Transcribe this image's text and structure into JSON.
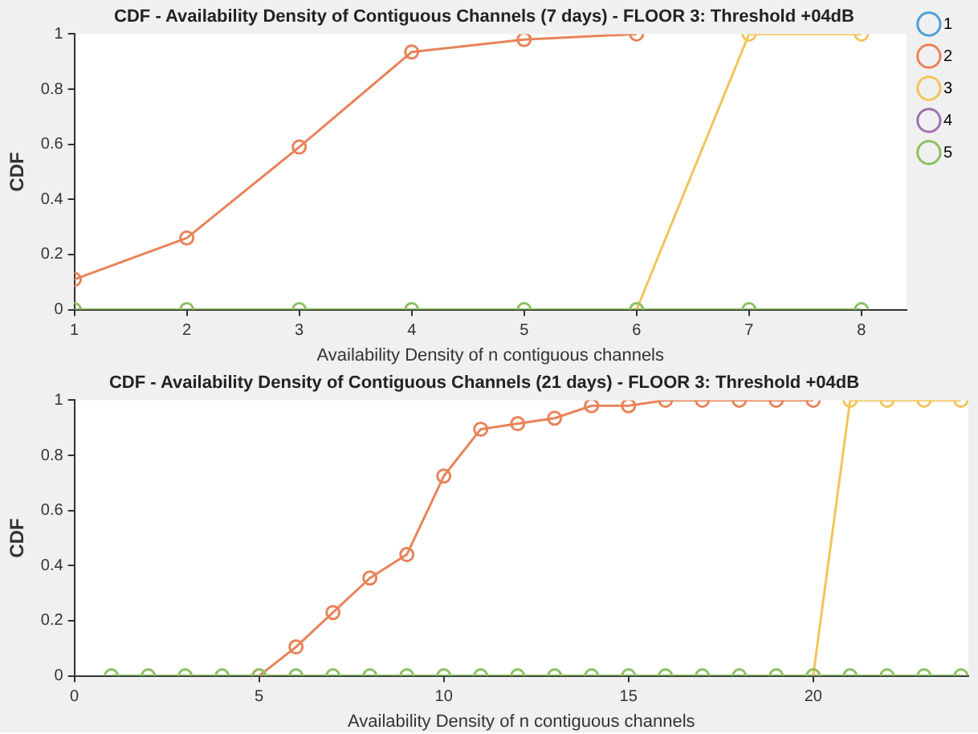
{
  "chart_data": [
    {
      "type": "line",
      "title": "CDF - Availability Density of Contiguous Channels (7 days) - FLOOR 3: Threshold +04dB",
      "xlabel": "Availability Density of n contiguous channels",
      "ylabel": "CDF",
      "x": [
        1,
        2,
        3,
        4,
        5,
        6,
        7,
        8
      ],
      "series": [
        {
          "name": "1",
          "color": "#4a9fd8",
          "values": [
            null,
            null,
            null,
            null,
            null,
            null,
            null,
            null
          ]
        },
        {
          "name": "2",
          "color": "#e8835a",
          "values": [
            0.11,
            0.26,
            0.59,
            0.935,
            0.98,
            1,
            null,
            null
          ]
        },
        {
          "name": "3",
          "color": "#f2c45a",
          "values": [
            null,
            null,
            null,
            null,
            null,
            0,
            1,
            1
          ]
        },
        {
          "name": "4",
          "color": "#a070b0",
          "values": [
            null,
            null,
            null,
            null,
            null,
            null,
            null,
            null
          ]
        },
        {
          "name": "5",
          "color": "#8cc063",
          "values": [
            0,
            0,
            0,
            0,
            0,
            0,
            0,
            0
          ]
        }
      ],
      "xlim": [
        1,
        8.4
      ],
      "xticks": [
        1,
        2,
        3,
        4,
        5,
        6,
        7,
        8
      ],
      "ylim": [
        0,
        1
      ],
      "yticks": [
        0,
        0.2,
        0.4,
        0.6,
        0.8,
        1
      ],
      "marker": "circle",
      "legend": "top right",
      "grid": false
    },
    {
      "type": "line",
      "title": "CDF - Availability Density of Contiguous Channels (21 days) - FLOOR 3: Threshold +04dB",
      "xlabel": "Availability Density of n contiguous channels",
      "ylabel": "CDF",
      "x": [
        1,
        2,
        3,
        4,
        5,
        6,
        7,
        8,
        9,
        10,
        11,
        12,
        13,
        14,
        15,
        16,
        17,
        18,
        19,
        20,
        21,
        22,
        23,
        24
      ],
      "series": [
        {
          "color": "#e8835a",
          "values": [
            null,
            null,
            null,
            null,
            0,
            0.105,
            0.23,
            0.355,
            0.44,
            0.725,
            0.895,
            0.915,
            0.935,
            0.98,
            0.98,
            1,
            1,
            1,
            1,
            1,
            null,
            null,
            null,
            null
          ]
        },
        {
          "color": "#f2c45a",
          "values": [
            null,
            null,
            null,
            null,
            null,
            null,
            null,
            null,
            null,
            null,
            null,
            null,
            null,
            null,
            null,
            null,
            null,
            null,
            null,
            0,
            1,
            1,
            1,
            1
          ]
        },
        {
          "color": "#8cc063",
          "values": [
            0,
            0,
            0,
            0,
            0,
            0,
            0,
            0,
            0,
            0,
            0,
            0,
            0,
            0,
            0,
            0,
            0,
            0,
            0,
            0,
            0,
            0,
            0,
            0
          ]
        }
      ],
      "xlim": [
        0,
        24.2
      ],
      "xticks": [
        0,
        5,
        10,
        15,
        20
      ],
      "ylim": [
        0,
        1
      ],
      "yticks": [
        0,
        0.2,
        0.4,
        0.6,
        0.8,
        1
      ],
      "marker": "circle",
      "legend": false,
      "grid": false
    }
  ]
}
